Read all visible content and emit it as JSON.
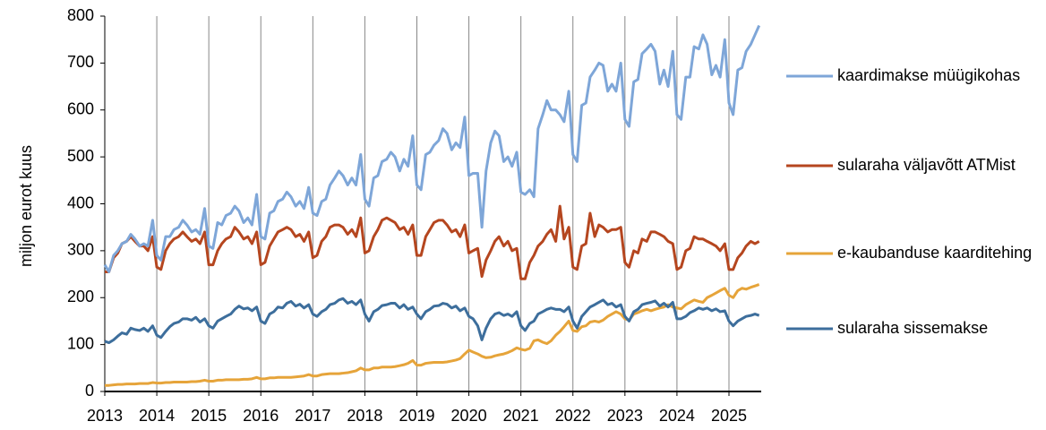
{
  "chart_data": {
    "type": "line",
    "y_label": "miljon eurot kuus",
    "xlim": [
      2013,
      2025.62
    ],
    "xticks": [
      2013,
      2014,
      2015,
      2016,
      2017,
      2018,
      2019,
      2020,
      2021,
      2022,
      2023,
      2024,
      2025
    ],
    "ylim": [
      0,
      800
    ],
    "yticks": [
      0,
      100,
      200,
      300,
      400,
      500,
      600,
      700,
      800
    ],
    "grid": "x",
    "legend": "right",
    "x": [
      2013.0,
      2013.08,
      2013.17,
      2013.25,
      2013.33,
      2013.42,
      2013.5,
      2013.58,
      2013.67,
      2013.75,
      2013.83,
      2013.92,
      2014.0,
      2014.08,
      2014.17,
      2014.25,
      2014.33,
      2014.42,
      2014.5,
      2014.58,
      2014.67,
      2014.75,
      2014.83,
      2014.92,
      2015.0,
      2015.08,
      2015.17,
      2015.25,
      2015.33,
      2015.42,
      2015.5,
      2015.58,
      2015.67,
      2015.75,
      2015.83,
      2015.92,
      2016.0,
      2016.08,
      2016.17,
      2016.25,
      2016.33,
      2016.42,
      2016.5,
      2016.58,
      2016.67,
      2016.75,
      2016.83,
      2016.92,
      2017.0,
      2017.08,
      2017.17,
      2017.25,
      2017.33,
      2017.42,
      2017.5,
      2017.58,
      2017.67,
      2017.75,
      2017.83,
      2017.92,
      2018.0,
      2018.08,
      2018.17,
      2018.25,
      2018.33,
      2018.42,
      2018.5,
      2018.58,
      2018.67,
      2018.75,
      2018.83,
      2018.92,
      2019.0,
      2019.08,
      2019.17,
      2019.25,
      2019.33,
      2019.42,
      2019.5,
      2019.58,
      2019.67,
      2019.75,
      2019.83,
      2019.92,
      2020.0,
      2020.08,
      2020.17,
      2020.25,
      2020.33,
      2020.42,
      2020.5,
      2020.58,
      2020.67,
      2020.75,
      2020.83,
      2020.92,
      2021.0,
      2021.08,
      2021.17,
      2021.25,
      2021.33,
      2021.42,
      2021.5,
      2021.58,
      2021.67,
      2021.75,
      2021.83,
      2021.92,
      2022.0,
      2022.08,
      2022.17,
      2022.25,
      2022.33,
      2022.42,
      2022.5,
      2022.58,
      2022.67,
      2022.75,
      2022.83,
      2022.92,
      2023.0,
      2023.08,
      2023.17,
      2023.25,
      2023.33,
      2023.42,
      2023.5,
      2023.58,
      2023.67,
      2023.75,
      2023.83,
      2023.92,
      2024.0,
      2024.08,
      2024.17,
      2024.25,
      2024.33,
      2024.42,
      2024.5,
      2024.58,
      2024.67,
      2024.75,
      2024.83,
      2024.92,
      2025.0,
      2025.08,
      2025.17,
      2025.25,
      2025.33,
      2025.42,
      2025.5,
      2025.58
    ],
    "series": [
      {
        "name": "kaardimakse müügikohas",
        "color": "#7ea6d8",
        "values": [
          270,
          255,
          290,
          300,
          315,
          320,
          335,
          325,
          310,
          315,
          310,
          365,
          290,
          280,
          330,
          330,
          345,
          350,
          365,
          355,
          340,
          345,
          335,
          390,
          310,
          305,
          360,
          355,
          375,
          380,
          395,
          385,
          360,
          370,
          355,
          420,
          330,
          325,
          380,
          385,
          405,
          410,
          425,
          415,
          395,
          405,
          390,
          435,
          380,
          375,
          405,
          410,
          440,
          455,
          470,
          460,
          440,
          455,
          440,
          505,
          410,
          395,
          455,
          460,
          490,
          495,
          510,
          500,
          470,
          495,
          480,
          545,
          440,
          430,
          505,
          510,
          525,
          535,
          560,
          550,
          515,
          530,
          520,
          585,
          460,
          465,
          465,
          350,
          470,
          530,
          555,
          545,
          490,
          500,
          480,
          510,
          425,
          420,
          430,
          415,
          560,
          590,
          620,
          600,
          600,
          590,
          575,
          640,
          505,
          490,
          610,
          615,
          670,
          685,
          700,
          695,
          640,
          655,
          640,
          700,
          580,
          565,
          660,
          665,
          720,
          730,
          740,
          725,
          655,
          685,
          650,
          725,
          590,
          580,
          670,
          670,
          735,
          730,
          760,
          740,
          675,
          695,
          670,
          750,
          615,
          590,
          685,
          690,
          725,
          740,
          760,
          780
        ]
      },
      {
        "name": "sularaha väljavõtt ATMist",
        "color": "#b5461f",
        "values": [
          255,
          255,
          285,
          295,
          315,
          320,
          330,
          320,
          310,
          310,
          300,
          330,
          265,
          260,
          300,
          315,
          325,
          330,
          340,
          330,
          320,
          325,
          315,
          340,
          270,
          270,
          300,
          315,
          325,
          330,
          350,
          340,
          325,
          330,
          315,
          340,
          270,
          275,
          310,
          325,
          340,
          345,
          350,
          345,
          330,
          335,
          320,
          340,
          285,
          290,
          320,
          330,
          350,
          355,
          355,
          350,
          335,
          345,
          330,
          370,
          295,
          300,
          330,
          345,
          365,
          370,
          365,
          360,
          345,
          350,
          335,
          355,
          290,
          290,
          330,
          345,
          360,
          365,
          365,
          355,
          340,
          345,
          330,
          355,
          295,
          300,
          305,
          245,
          280,
          300,
          320,
          330,
          310,
          320,
          300,
          305,
          240,
          240,
          275,
          290,
          310,
          320,
          335,
          345,
          320,
          395,
          325,
          350,
          265,
          260,
          310,
          315,
          380,
          330,
          355,
          350,
          340,
          345,
          345,
          350,
          275,
          265,
          300,
          295,
          325,
          320,
          340,
          340,
          335,
          330,
          320,
          315,
          260,
          265,
          300,
          305,
          330,
          325,
          325,
          320,
          315,
          310,
          300,
          315,
          260,
          260,
          285,
          295,
          310,
          320,
          315,
          320
        ]
      },
      {
        "name": "e-kaubanduse kaarditehing",
        "color": "#e6a43a",
        "values": [
          13,
          13,
          14,
          15,
          15,
          16,
          16,
          16,
          17,
          17,
          17,
          19,
          18,
          18,
          19,
          19,
          20,
          20,
          20,
          20,
          21,
          21,
          22,
          24,
          22,
          22,
          24,
          24,
          25,
          25,
          25,
          25,
          26,
          26,
          27,
          30,
          27,
          27,
          29,
          29,
          30,
          30,
          30,
          30,
          31,
          32,
          33,
          36,
          33,
          33,
          36,
          37,
          38,
          38,
          38,
          39,
          40,
          42,
          44,
          50,
          46,
          46,
          50,
          50,
          52,
          52,
          52,
          53,
          55,
          57,
          60,
          66,
          56,
          56,
          60,
          61,
          62,
          62,
          62,
          63,
          65,
          67,
          70,
          80,
          88,
          84,
          80,
          75,
          72,
          73,
          76,
          78,
          80,
          83,
          87,
          93,
          90,
          88,
          92,
          108,
          110,
          105,
          102,
          108,
          120,
          128,
          138,
          150,
          130,
          128,
          138,
          140,
          148,
          150,
          148,
          152,
          160,
          165,
          170,
          165,
          155,
          152,
          165,
          168,
          172,
          175,
          172,
          175,
          178,
          180,
          185,
          180,
          178,
          176,
          185,
          190,
          195,
          192,
          190,
          200,
          205,
          210,
          215,
          220,
          205,
          200,
          215,
          220,
          218,
          222,
          225,
          228
        ]
      },
      {
        "name": "sularaha sissemakse",
        "color": "#3d6e9c",
        "values": [
          107,
          104,
          110,
          118,
          125,
          122,
          135,
          132,
          130,
          135,
          128,
          140,
          120,
          115,
          128,
          138,
          145,
          148,
          155,
          155,
          152,
          158,
          148,
          155,
          140,
          135,
          150,
          155,
          160,
          165,
          175,
          182,
          176,
          178,
          172,
          180,
          150,
          145,
          165,
          170,
          180,
          178,
          188,
          192,
          182,
          186,
          178,
          185,
          165,
          160,
          170,
          175,
          185,
          188,
          195,
          198,
          188,
          192,
          185,
          195,
          165,
          150,
          170,
          175,
          183,
          185,
          188,
          188,
          178,
          185,
          175,
          180,
          165,
          155,
          170,
          175,
          182,
          183,
          188,
          186,
          178,
          182,
          172,
          178,
          160,
          155,
          140,
          110,
          135,
          155,
          165,
          168,
          162,
          165,
          160,
          170,
          140,
          130,
          145,
          150,
          165,
          170,
          175,
          178,
          175,
          175,
          170,
          180,
          150,
          135,
          160,
          170,
          180,
          185,
          190,
          195,
          185,
          188,
          180,
          185,
          160,
          150,
          170,
          175,
          185,
          188,
          190,
          193,
          182,
          188,
          180,
          190,
          155,
          155,
          160,
          168,
          172,
          178,
          175,
          178,
          172,
          176,
          170,
          172,
          150,
          140,
          150,
          155,
          160,
          162,
          165,
          162
        ]
      }
    ]
  }
}
